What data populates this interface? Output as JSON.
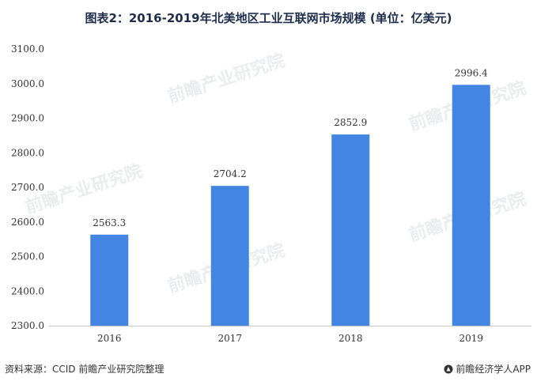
{
  "chart_data": {
    "type": "bar",
    "title": "图表2：2016-2019年北美地区工业互联网市场规模 (单位：亿美元)",
    "categories": [
      "2016",
      "2017",
      "2018",
      "2019"
    ],
    "values": [
      2563.3,
      2704.2,
      2852.9,
      2996.4
    ],
    "value_labels": [
      "2563.3",
      "2704.2",
      "2852.9",
      "2996.4"
    ],
    "ylim": [
      2300,
      3100
    ],
    "yticks": [
      2300,
      2400,
      2500,
      2600,
      2700,
      2800,
      2900,
      3000,
      3100
    ],
    "ytick_labels": [
      "2300.0",
      "2400.0",
      "2500.0",
      "2600.0",
      "2700.0",
      "2800.0",
      "2900.0",
      "3000.0",
      "3100.0"
    ],
    "xlabel": "",
    "ylabel": "",
    "grid": false,
    "bar_color": "#4285e3"
  },
  "watermark": "前瞻产业研究院",
  "footer": {
    "source": "资料来源：CCID 前瞻产业研究院整理",
    "brand": "前瞻经济学人APP",
    "brand_icon": "qianzhan-logo-icon"
  },
  "colors": {
    "title": "#1f2d4d",
    "axis": "#c8c8c8",
    "bar": "#4285e3"
  }
}
